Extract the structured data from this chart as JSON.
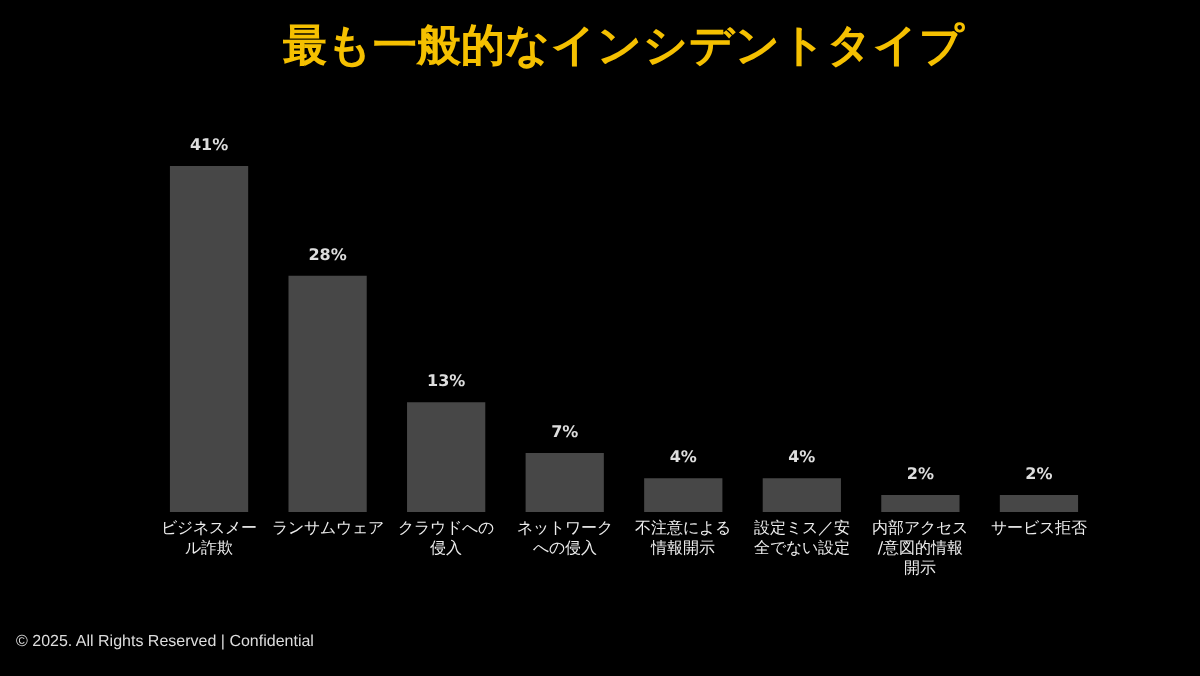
{
  "chart_data": {
    "type": "bar",
    "title": "最も一般的なインシデントタイプ",
    "categories": [
      "ビジネスメール詐欺",
      "ランサムウェア",
      "クラウドへの侵入",
      "ネットワークへの侵入",
      "不注意による情報開示",
      "設定ミス／安全でない設定",
      "内部アクセス/意図的情報開示",
      "サービス拒否"
    ],
    "values": [
      41,
      28,
      13,
      7,
      4,
      4,
      2,
      2
    ],
    "value_labels": [
      "41%",
      "28%",
      "13%",
      "7%",
      "4%",
      "4%",
      "2%",
      "2%"
    ],
    "color": "#474747",
    "grid": false,
    "annotations": [
      "© 2025. All Rights Reserved | Confidential"
    ]
  }
}
